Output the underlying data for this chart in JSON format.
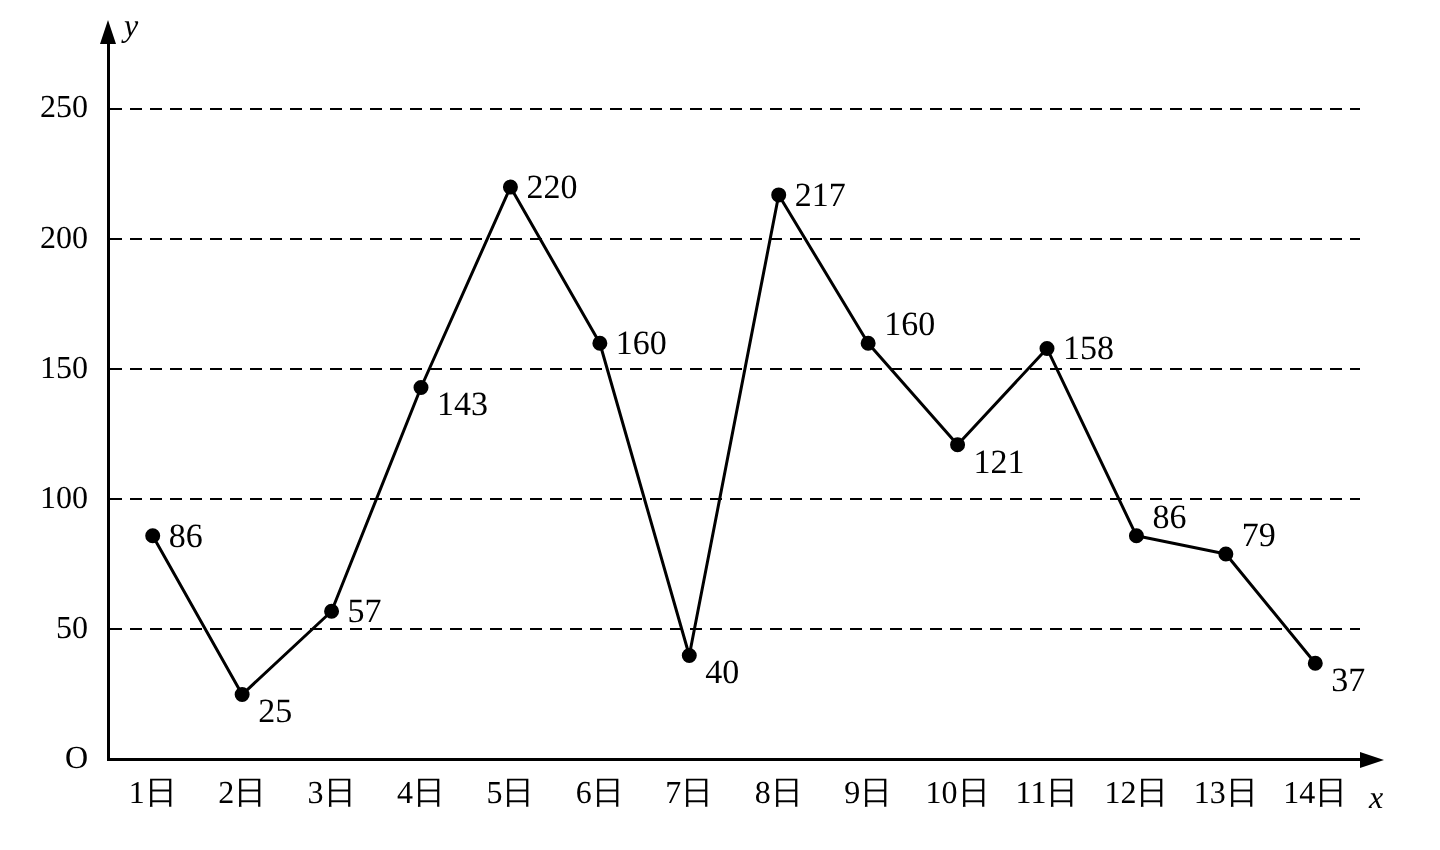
{
  "chart_data": {
    "type": "line",
    "xlabel": "x",
    "ylabel": "y",
    "categories": [
      "1日",
      "2日",
      "3日",
      "4日",
      "5日",
      "6日",
      "7日",
      "8日",
      "9日",
      "10日",
      "11日",
      "12日",
      "13日",
      "14日"
    ],
    "series": [
      {
        "color": "#000000",
        "values": [
          86,
          25,
          57,
          143,
          220,
          160,
          40,
          217,
          160,
          121,
          158,
          86,
          79,
          37
        ]
      }
    ],
    "ylim": [
      0,
      275
    ],
    "yticks": [
      {
        "value": 0,
        "label": "O"
      },
      50,
      100,
      150,
      200,
      250
    ],
    "grid": "y",
    "legend": false,
    "marker": "circle",
    "line_style": "solid",
    "data_labels": true
  }
}
